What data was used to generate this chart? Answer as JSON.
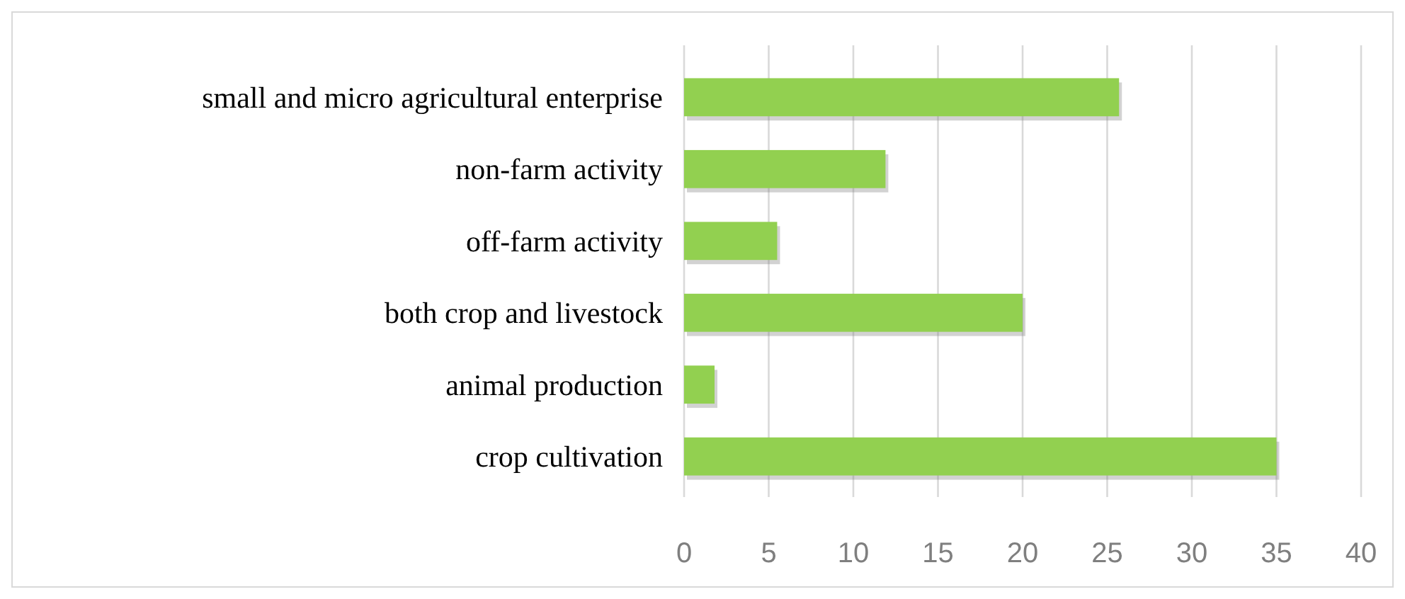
{
  "chart_data": {
    "type": "bar",
    "orientation": "horizontal",
    "categories": [
      "small and micro agricultural enterprise",
      "non-farm activity",
      "off-farm activity",
      "both crop and livestock ",
      "animal production",
      "crop cultivation"
    ],
    "values": [
      25.7,
      11.9,
      5.5,
      20,
      1.8,
      35
    ],
    "color": "#92d050",
    "xlim": [
      0,
      40
    ],
    "xticks": [
      0,
      5,
      10,
      15,
      20,
      25,
      30,
      35,
      40
    ],
    "grid": "x"
  }
}
